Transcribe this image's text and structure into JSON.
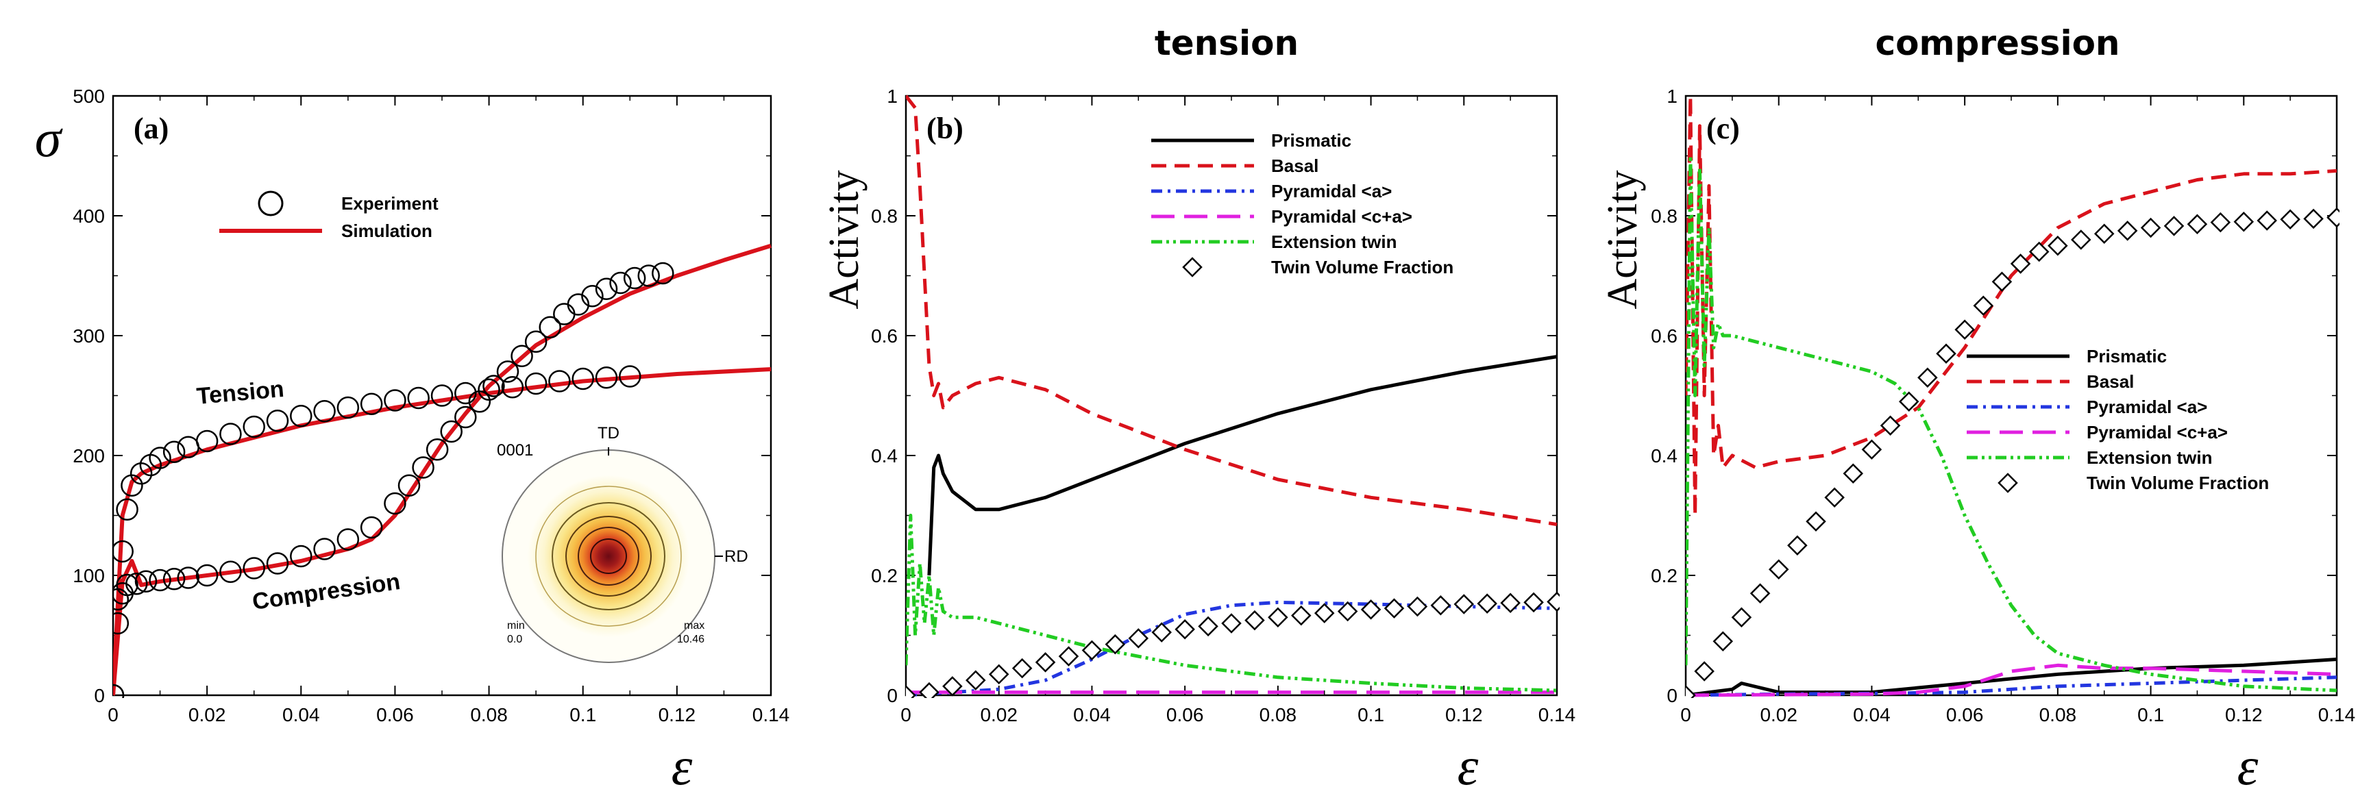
{
  "chart_data": [
    {
      "panel": "a",
      "type": "line",
      "panel_label": "(a)",
      "title": "",
      "ylabel": "σ",
      "xlabel": "ε",
      "xlim": [
        0,
        0.14
      ],
      "ylim": [
        0,
        500
      ],
      "xticks": [
        "0",
        "0.02",
        "0.04",
        "0.06",
        "0.08",
        "0.1",
        "0.12",
        "0.14"
      ],
      "yticks": [
        "0",
        "100",
        "200",
        "300",
        "400",
        "500"
      ],
      "legend": {
        "experiment": "Experiment",
        "simulation": "Simulation"
      },
      "annotations": {
        "tension": "Tension",
        "compression": "Compression"
      },
      "series": [
        {
          "name": "Simulation (tension)",
          "style": "line",
          "color": "#d9121b",
          "x": [
            0,
            0.002,
            0.004,
            0.006,
            0.01,
            0.02,
            0.04,
            0.06,
            0.08,
            0.1,
            0.12,
            0.14
          ],
          "y": [
            0,
            150,
            178,
            185,
            192,
            205,
            225,
            240,
            252,
            262,
            268,
            272
          ]
        },
        {
          "name": "Simulation (compression)",
          "style": "line",
          "color": "#d9121b",
          "x": [
            0,
            0.002,
            0.004,
            0.006,
            0.01,
            0.02,
            0.03,
            0.04,
            0.05,
            0.055,
            0.06,
            0.065,
            0.07,
            0.075,
            0.08,
            0.085,
            0.09,
            0.1,
            0.11,
            0.12,
            0.13,
            0.14
          ],
          "y": [
            0,
            95,
            112,
            92,
            95,
            100,
            105,
            112,
            122,
            130,
            150,
            180,
            210,
            235,
            258,
            275,
            292,
            315,
            335,
            350,
            363,
            375
          ]
        },
        {
          "name": "Experiment (tension)",
          "style": "circle",
          "color": "#000000",
          "x": [
            0,
            0.001,
            0.002,
            0.003,
            0.004,
            0.006,
            0.008,
            0.01,
            0.013,
            0.016,
            0.02,
            0.025,
            0.03,
            0.035,
            0.04,
            0.045,
            0.05,
            0.055,
            0.06,
            0.065,
            0.07,
            0.075,
            0.08,
            0.085,
            0.09,
            0.095,
            0.1,
            0.105,
            0.11
          ],
          "y": [
            0,
            80,
            120,
            155,
            175,
            185,
            192,
            198,
            203,
            207,
            212,
            218,
            224,
            229,
            233,
            237,
            240,
            243,
            246,
            248,
            250,
            252,
            255,
            257,
            260,
            262,
            264,
            265,
            266
          ]
        },
        {
          "name": "Experiment (compression)",
          "style": "circle",
          "color": "#000000",
          "x": [
            0,
            0.001,
            0.002,
            0.003,
            0.005,
            0.007,
            0.01,
            0.013,
            0.016,
            0.02,
            0.025,
            0.03,
            0.035,
            0.04,
            0.045,
            0.05,
            0.055,
            0.06,
            0.063,
            0.066,
            0.069,
            0.072,
            0.075,
            0.078,
            0.081,
            0.084,
            0.087,
            0.09,
            0.093,
            0.096,
            0.099,
            0.102,
            0.105,
            0.108,
            0.111,
            0.114,
            0.117
          ],
          "y": [
            0,
            60,
            85,
            92,
            93,
            95,
            96,
            97,
            98,
            100,
            103,
            106,
            110,
            116,
            122,
            130,
            140,
            160,
            175,
            190,
            205,
            220,
            232,
            245,
            258,
            270,
            283,
            295,
            307,
            318,
            326,
            333,
            339,
            344,
            348,
            350,
            352
          ]
        }
      ],
      "inset": {
        "rd": "RD",
        "td": "TD",
        "plane": "0001",
        "min_label": "min",
        "min_value": "0.0",
        "max_label": "max",
        "max_value": "10.46"
      }
    },
    {
      "panel": "b",
      "type": "line",
      "panel_label": "(b)",
      "title": "tension",
      "ylabel": "Activity",
      "xlabel": "ε",
      "xlim": [
        0,
        0.14
      ],
      "ylim": [
        0,
        1
      ],
      "xticks": [
        "0",
        "0.02",
        "0.04",
        "0.06",
        "0.08",
        "0.1",
        "0.12",
        "0.14"
      ],
      "yticks": [
        "0",
        "0.2",
        "0.4",
        "0.6",
        "0.8",
        "1"
      ],
      "legend": [
        "Prismatic",
        "Basal",
        "Pyramidal <a>",
        "Pyramidal <c+a>",
        "Extension twin",
        "Twin Volume Fraction"
      ],
      "series": [
        {
          "name": "Prismatic",
          "style": "solid",
          "color": "#000000",
          "x": [
            0.005,
            0.006,
            0.007,
            0.008,
            0.01,
            0.015,
            0.02,
            0.03,
            0.04,
            0.06,
            0.08,
            0.1,
            0.12,
            0.14
          ],
          "y": [
            0.2,
            0.38,
            0.4,
            0.37,
            0.34,
            0.31,
            0.31,
            0.33,
            0.36,
            0.42,
            0.47,
            0.51,
            0.54,
            0.565
          ]
        },
        {
          "name": "Basal",
          "style": "dash",
          "color": "#d9121b",
          "x": [
            0,
            0.002,
            0.003,
            0.004,
            0.005,
            0.006,
            0.007,
            0.008,
            0.01,
            0.015,
            0.02,
            0.03,
            0.04,
            0.06,
            0.08,
            0.1,
            0.12,
            0.14
          ],
          "y": [
            1,
            0.98,
            0.85,
            0.7,
            0.55,
            0.5,
            0.52,
            0.48,
            0.5,
            0.52,
            0.53,
            0.51,
            0.47,
            0.41,
            0.36,
            0.33,
            0.31,
            0.285
          ]
        },
        {
          "name": "Pyramidal <a>",
          "style": "dashdot",
          "color": "#2336e0",
          "x": [
            0,
            0.01,
            0.02,
            0.03,
            0.04,
            0.05,
            0.06,
            0.07,
            0.08,
            0.1,
            0.12,
            0.14
          ],
          "y": [
            0,
            0.005,
            0.01,
            0.025,
            0.06,
            0.1,
            0.135,
            0.15,
            0.155,
            0.152,
            0.148,
            0.145
          ]
        },
        {
          "name": "Pyramidal <c+a>",
          "style": "longdash",
          "color": "#e020e0",
          "x": [
            0,
            0.14
          ],
          "y": [
            0.005,
            0.005
          ]
        },
        {
          "name": "Extension twin",
          "style": "dashdotdot",
          "color": "#22cc22",
          "x": [
            0,
            0.001,
            0.002,
            0.003,
            0.004,
            0.005,
            0.006,
            0.007,
            0.008,
            0.01,
            0.015,
            0.02,
            0.03,
            0.04,
            0.06,
            0.08,
            0.1,
            0.12,
            0.14
          ],
          "y": [
            0.05,
            0.3,
            0.1,
            0.22,
            0.12,
            0.2,
            0.1,
            0.18,
            0.14,
            0.13,
            0.13,
            0.12,
            0.1,
            0.08,
            0.05,
            0.03,
            0.02,
            0.012,
            0.008
          ]
        },
        {
          "name": "Twin Volume Fraction",
          "style": "diamond",
          "color": "#000000",
          "x": [
            0,
            0.005,
            0.01,
            0.015,
            0.02,
            0.025,
            0.03,
            0.035,
            0.04,
            0.045,
            0.05,
            0.055,
            0.06,
            0.065,
            0.07,
            0.075,
            0.08,
            0.085,
            0.09,
            0.095,
            0.1,
            0.105,
            0.11,
            0.115,
            0.12,
            0.125,
            0.13,
            0.135,
            0.14
          ],
          "y": [
            0,
            0.005,
            0.015,
            0.025,
            0.035,
            0.045,
            0.055,
            0.065,
            0.075,
            0.085,
            0.095,
            0.105,
            0.11,
            0.115,
            0.12,
            0.125,
            0.13,
            0.133,
            0.137,
            0.14,
            0.143,
            0.145,
            0.148,
            0.15,
            0.152,
            0.153,
            0.154,
            0.155,
            0.156
          ]
        }
      ]
    },
    {
      "panel": "c",
      "type": "line",
      "panel_label": "(c)",
      "title": "compression",
      "ylabel": "Activity",
      "xlabel": "ε",
      "xlim": [
        0,
        0.14
      ],
      "ylim": [
        0,
        1
      ],
      "xticks": [
        "0",
        "0.02",
        "0.04",
        "0.06",
        "0.08",
        "0.1",
        "0.12",
        "0.14"
      ],
      "yticks": [
        "0",
        "0.2",
        "0.4",
        "0.6",
        "0.8",
        "1"
      ],
      "legend": [
        "Prismatic",
        "Basal",
        "Pyramidal <a>",
        "Pyramidal <c+a>",
        "Extension twin",
        "Twin Volume Fraction"
      ],
      "series": [
        {
          "name": "Prismatic",
          "style": "solid",
          "color": "#000000",
          "x": [
            0,
            0.01,
            0.012,
            0.02,
            0.04,
            0.06,
            0.08,
            0.1,
            0.12,
            0.14
          ],
          "y": [
            0,
            0.01,
            0.02,
            0.005,
            0.005,
            0.02,
            0.035,
            0.045,
            0.05,
            0.06
          ]
        },
        {
          "name": "Basal",
          "style": "dash",
          "color": "#d9121b",
          "x": [
            0,
            0.001,
            0.002,
            0.003,
            0.004,
            0.005,
            0.006,
            0.007,
            0.008,
            0.01,
            0.015,
            0.02,
            0.03,
            0.04,
            0.05,
            0.06,
            0.07,
            0.08,
            0.09,
            0.1,
            0.11,
            0.12,
            0.13,
            0.14
          ],
          "y": [
            0.5,
            1,
            0.3,
            0.95,
            0.5,
            0.85,
            0.4,
            0.45,
            0.38,
            0.4,
            0.38,
            0.39,
            0.4,
            0.43,
            0.48,
            0.58,
            0.7,
            0.78,
            0.82,
            0.84,
            0.86,
            0.87,
            0.87,
            0.875
          ]
        },
        {
          "name": "Pyramidal <a>",
          "style": "dashdot",
          "color": "#2336e0",
          "x": [
            0,
            0.02,
            0.04,
            0.06,
            0.08,
            0.1,
            0.12,
            0.14
          ],
          "y": [
            0,
            0.002,
            0.003,
            0.005,
            0.015,
            0.02,
            0.025,
            0.03
          ]
        },
        {
          "name": "Pyramidal <c+a>",
          "style": "longdash",
          "color": "#e020e0",
          "x": [
            0,
            0.04,
            0.05,
            0.06,
            0.07,
            0.08,
            0.09,
            0.1,
            0.12,
            0.14
          ],
          "y": [
            0,
            0.002,
            0.005,
            0.015,
            0.04,
            0.05,
            0.045,
            0.045,
            0.04,
            0.035
          ]
        },
        {
          "name": "Extension twin",
          "style": "dashdotdot",
          "color": "#22cc22",
          "x": [
            0,
            0.001,
            0.002,
            0.003,
            0.004,
            0.005,
            0.006,
            0.007,
            0.008,
            0.01,
            0.015,
            0.02,
            0.03,
            0.04,
            0.045,
            0.05,
            0.055,
            0.06,
            0.065,
            0.07,
            0.075,
            0.08,
            0.09,
            0.1,
            0.12,
            0.14
          ],
          "y": [
            0.05,
            0.9,
            0.5,
            0.88,
            0.55,
            0.78,
            0.58,
            0.62,
            0.6,
            0.6,
            0.59,
            0.58,
            0.56,
            0.54,
            0.52,
            0.48,
            0.4,
            0.3,
            0.22,
            0.15,
            0.1,
            0.07,
            0.05,
            0.035,
            0.015,
            0.008
          ]
        },
        {
          "name": "Twin Volume Fraction",
          "style": "diamond",
          "color": "#000000",
          "x": [
            0,
            0.004,
            0.008,
            0.012,
            0.016,
            0.02,
            0.024,
            0.028,
            0.032,
            0.036,
            0.04,
            0.044,
            0.048,
            0.052,
            0.056,
            0.06,
            0.064,
            0.068,
            0.072,
            0.076,
            0.08,
            0.085,
            0.09,
            0.095,
            0.1,
            0.105,
            0.11,
            0.115,
            0.12,
            0.125,
            0.13,
            0.135,
            0.14
          ],
          "y": [
            0,
            0.04,
            0.09,
            0.13,
            0.17,
            0.21,
            0.25,
            0.29,
            0.33,
            0.37,
            0.41,
            0.45,
            0.49,
            0.53,
            0.57,
            0.61,
            0.65,
            0.69,
            0.72,
            0.74,
            0.75,
            0.76,
            0.77,
            0.775,
            0.78,
            0.783,
            0.786,
            0.789,
            0.79,
            0.792,
            0.794,
            0.795,
            0.797
          ]
        }
      ]
    }
  ]
}
